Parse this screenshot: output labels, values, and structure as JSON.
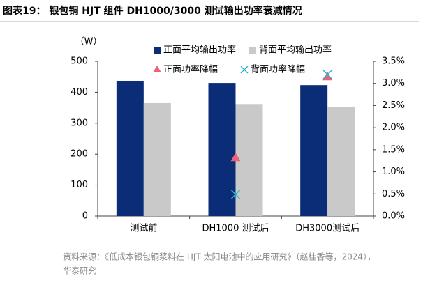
{
  "header": {
    "title": "图表19：  银包铜 HJT 组件 DH1000/3000 测试输出功率衰减情况"
  },
  "chart_data": {
    "type": "bar",
    "y_label": "（W）",
    "categories": [
      "测试前",
      "DH1000 测试后",
      "DH3000测试后"
    ],
    "series": [
      {
        "name": "正面平均输出功率",
        "color": "#0b2d78",
        "values": [
          437,
          430,
          423
        ]
      },
      {
        "name": "背面平均输出功率",
        "color": "#c9c9c9",
        "values": [
          365,
          362,
          353
        ]
      },
      {
        "name": "正面功率降幅",
        "color": "#f0607a",
        "axis": "y2",
        "marker": "triangle",
        "values": [
          null,
          1.32,
          3.15
        ]
      },
      {
        "name": "背面功率降幅",
        "color": "#2ab0d8",
        "axis": "y2",
        "marker": "x",
        "values": [
          null,
          0.49,
          3.2
        ]
      }
    ],
    "ylim": [
      0,
      500
    ],
    "yticks": [
      0,
      100,
      200,
      300,
      400,
      500
    ],
    "y2lim": [
      0,
      3.5
    ],
    "y2ticks": [
      {
        "value": 0,
        "label": "0.0%"
      },
      {
        "value": 0.5,
        "label": "0.5%"
      },
      {
        "value": 1,
        "label": "1.0%"
      },
      {
        "value": 1.5,
        "label": "1.5%"
      },
      {
        "value": 2,
        "label": "2.0%"
      },
      {
        "value": 2.5,
        "label": "2.5%"
      },
      {
        "value": 3,
        "label": "3.0%"
      },
      {
        "value": 3.5,
        "label": "3.5%"
      }
    ],
    "grid": false
  },
  "footer": {
    "source": [
      "资料来源：《低成本银包铜浆料在 HJT 太阳电池中的应用研究》（赵桂香等，2024），",
      "华泰研究"
    ]
  }
}
